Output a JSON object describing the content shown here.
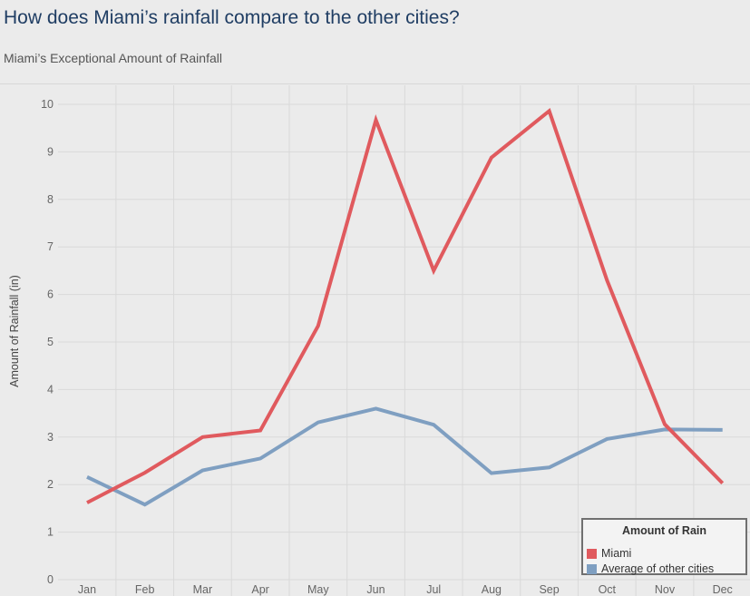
{
  "header": {
    "title": "How does Miami’s rainfall compare to the other cities?",
    "subtitle": "Miami’s Exceptional Amount of Rainfall"
  },
  "legend": {
    "title": "Amount of Rain",
    "placement": "bottom-right"
  },
  "colors": {
    "miami": "#e05a5e",
    "average": "#7f9fc1"
  },
  "chart_data": {
    "type": "line",
    "title": "How does Miami’s rainfall compare to the other cities?",
    "subtitle": "Miami’s Exceptional Amount of Rainfall",
    "xlabel": "",
    "ylabel": "Amount of Rainfall (in)",
    "categories": [
      "Jan",
      "Feb",
      "Mar",
      "Apr",
      "May",
      "Jun",
      "Jul",
      "Aug",
      "Sep",
      "Oct",
      "Nov",
      "Dec"
    ],
    "ylim": [
      0,
      10
    ],
    "yticks": [
      0,
      1,
      2,
      3,
      4,
      5,
      6,
      7,
      8,
      9,
      10
    ],
    "grid": true,
    "legend_placement": "bottom-right",
    "series": [
      {
        "name": "Miami",
        "color": "#e05a5e",
        "values": [
          1.62,
          2.25,
          3.0,
          3.14,
          5.34,
          9.67,
          6.5,
          8.88,
          9.86,
          6.3,
          3.27,
          2.03
        ]
      },
      {
        "name": "Average of other cities",
        "color": "#7f9fc1",
        "values": [
          2.16,
          1.58,
          2.3,
          2.55,
          3.31,
          3.6,
          3.26,
          2.24,
          2.36,
          2.96,
          3.16,
          3.15
        ]
      }
    ]
  }
}
